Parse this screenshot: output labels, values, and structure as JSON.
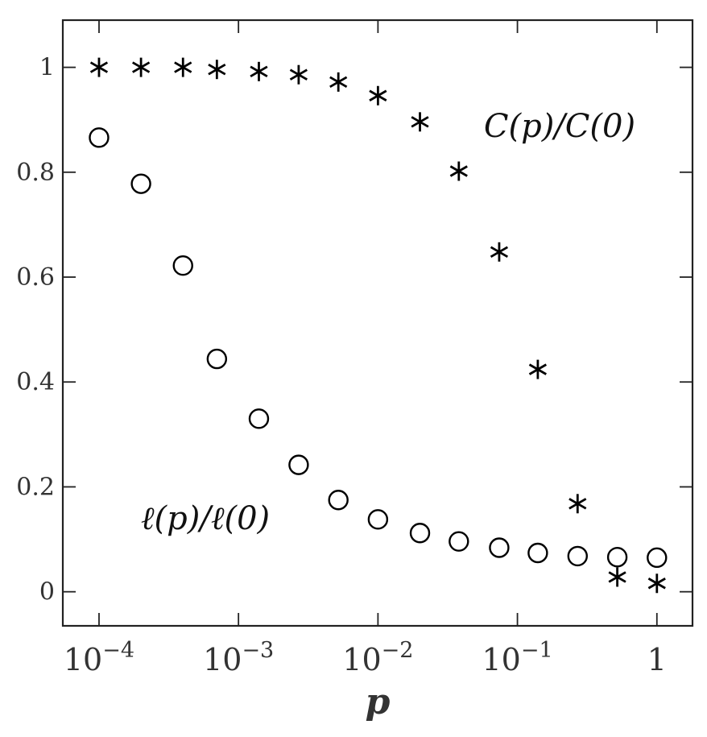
{
  "chart_data": {
    "type": "scatter",
    "xscale": "log",
    "xlabel": "p",
    "ylabel": "",
    "xlim": [
      5.5e-05,
      1.8
    ],
    "ylim": [
      -0.065,
      1.09
    ],
    "xticks": [
      {
        "value": 0.0001,
        "base": "10",
        "exp": "−4"
      },
      {
        "value": 0.001,
        "base": "10",
        "exp": "−3"
      },
      {
        "value": 0.01,
        "base": "10",
        "exp": "−2"
      },
      {
        "value": 0.1,
        "base": "10",
        "exp": "−1"
      },
      {
        "value": 1,
        "base": "1",
        "exp": ""
      }
    ],
    "yticks": [
      {
        "value": 0,
        "label": "0"
      },
      {
        "value": 0.2,
        "label": "0.2"
      },
      {
        "value": 0.4,
        "label": "0.4"
      },
      {
        "value": 0.6,
        "label": "0.6"
      },
      {
        "value": 0.8,
        "label": "0.8"
      },
      {
        "value": 1,
        "label": "1"
      }
    ],
    "grid": false,
    "legend": "none",
    "annotations": [
      {
        "text": "C(p)/C(0)",
        "series": "asterisk"
      },
      {
        "text": "ℓ(p)/ℓ(0)",
        "series": "circle"
      }
    ],
    "series": [
      {
        "marker": "asterisk",
        "x": [
          0.0001,
          0.0002,
          0.0004,
          0.0007,
          0.0014,
          0.0027,
          0.0052,
          0.01,
          0.02,
          0.038,
          0.074,
          0.14,
          0.27,
          0.52,
          1
        ],
        "y": [
          1.0,
          1.0,
          1.0,
          0.996,
          0.992,
          0.986,
          0.972,
          0.946,
          0.896,
          0.802,
          0.648,
          0.424,
          0.168,
          0.028,
          0.016
        ]
      },
      {
        "marker": "circle",
        "x": [
          0.0001,
          0.0002,
          0.0004,
          0.0007,
          0.0014,
          0.0027,
          0.0052,
          0.01,
          0.02,
          0.038,
          0.074,
          0.14,
          0.27,
          0.52,
          1
        ],
        "y": [
          0.866,
          0.778,
          0.622,
          0.444,
          0.33,
          0.242,
          0.175,
          0.138,
          0.112,
          0.096,
          0.084,
          0.074,
          0.068,
          0.066,
          0.065
        ]
      }
    ]
  }
}
